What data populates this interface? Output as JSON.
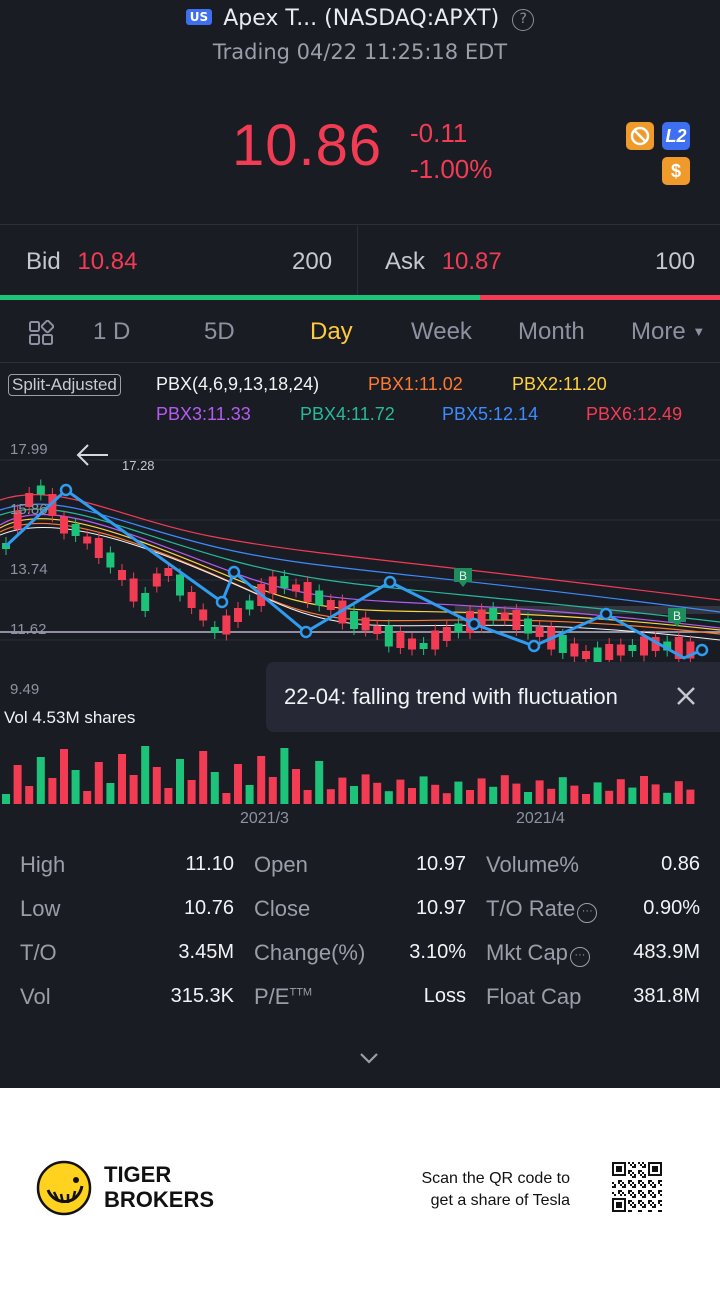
{
  "header": {
    "market_badge": "US",
    "title": "Apex T... (NASDAQ:APXT)",
    "status": "Trading 04/22 11:25:18 EDT"
  },
  "quote": {
    "price": "10.86",
    "change": "-0.11",
    "change_pct": "-1.00%",
    "l2_icon": "L2",
    "dollar_icon": "$"
  },
  "bid_ask": {
    "bid_label": "Bid",
    "bid_price": "10.84",
    "bid_size": "200",
    "ask_label": "Ask",
    "ask_price": "10.87",
    "ask_size": "100",
    "bid_share": 0.667
  },
  "tabs": [
    "1 D",
    "5D",
    "Day",
    "Week",
    "Month",
    "More"
  ],
  "active_tab": "Day",
  "indicators": {
    "split": "Split-Adjusted",
    "pbx": "PBX(4,6,9,13,18,24)",
    "items": [
      {
        "label": "PBX1:11.02",
        "color": "#ff7a2f"
      },
      {
        "label": "PBX2:11.20",
        "color": "#ffd23c"
      },
      {
        "label": "PBX3:11.33",
        "color": "#b55cf0"
      },
      {
        "label": "PBX4:11.72",
        "color": "#27b99a"
      },
      {
        "label": "PBX5:12.14",
        "color": "#3c8cff"
      },
      {
        "label": "PBX6:12.49",
        "color": "#f23c54"
      }
    ]
  },
  "chart": {
    "y_labels": [
      "17.99",
      "15.86",
      "13.74",
      "11.62",
      "9.49"
    ],
    "max_label": "17.28",
    "trend_note": "22-04: falling trend with fluctuation",
    "buy_marker": "B",
    "volume_label": "Vol   4.53M shares",
    "dates": [
      "2021/3",
      "2021/4"
    ]
  },
  "stats": [
    [
      {
        "label": "High",
        "value": "11.10"
      },
      {
        "label": "Open",
        "value": "10.97"
      },
      {
        "label": "Volume%",
        "value": "0.86"
      }
    ],
    [
      {
        "label": "Low",
        "value": "10.76"
      },
      {
        "label": "Close",
        "value": "10.97"
      },
      {
        "label": "T/O Rate",
        "value": "0.90%"
      }
    ],
    [
      {
        "label": "T/O",
        "value": "3.45M"
      },
      {
        "label": "Change(%)",
        "value": "3.10%"
      },
      {
        "label": "Mkt Cap",
        "value": "483.9M"
      }
    ],
    [
      {
        "label": "Vol",
        "value": "315.3K"
      },
      {
        "label": "P/E",
        "value": "Loss"
      },
      {
        "label": "Float Cap",
        "value": "381.8M"
      }
    ]
  ],
  "pe_sup": "TTM",
  "footer": {
    "brand_line1": "TIGER",
    "brand_line2": "BROKERS",
    "scan_line1": "Scan the QR code to",
    "scan_line2": "get a share of Tesla"
  },
  "colors": {
    "up": "#1ec37a",
    "down": "#f23c54",
    "accent": "#ffcb3c",
    "trend": "#2f9cf0"
  }
}
